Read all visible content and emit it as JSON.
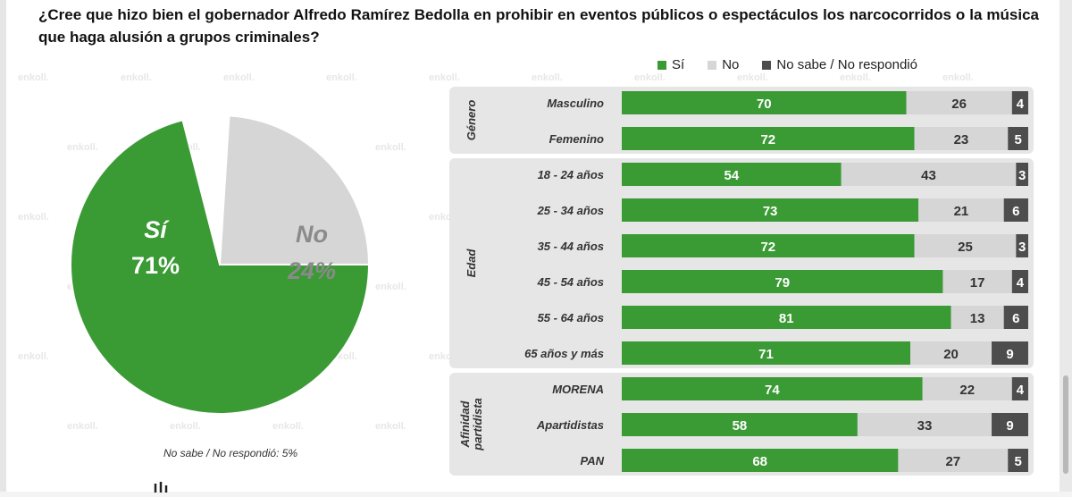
{
  "question": "¿Cree que hizo bien el gobernador Alfredo Ramírez Bedolla en prohibir en eventos públicos o espectáculos los narcocorridos o la música que haga alusión a grupos criminales?",
  "legend": [
    {
      "label": "Sí",
      "color": "#3a9a34"
    },
    {
      "label": "No",
      "color": "#d6d6d6"
    },
    {
      "label": "No sabe / No respondió",
      "color": "#4d4d4d"
    }
  ],
  "pie": {
    "slices": [
      {
        "label": "Sí",
        "value": 71,
        "display": "71%",
        "color": "#3a9a34"
      },
      {
        "label": "No",
        "value": 24,
        "display": "24%",
        "color": "#d6d6d6"
      }
    ],
    "footnote": "No sabe / No respondió: 5%"
  },
  "watermark": "enkoll.",
  "chart_data": [
    {
      "type": "pie",
      "categories": [
        "Sí",
        "No",
        "No sabe / No respondió"
      ],
      "values": [
        71,
        24,
        5
      ]
    },
    {
      "type": "bar",
      "orientation": "horizontal",
      "stacked": true,
      "groups": [
        {
          "name": "Género",
          "rows": [
            "Masculino",
            "Femenino"
          ]
        },
        {
          "name": "Edad",
          "rows": [
            "18 - 24 años",
            "25 - 34 años",
            "35 - 44 años",
            "45 - 54 años",
            "55 - 64 años",
            "65  años y más"
          ]
        },
        {
          "name": "Afinidad partidista",
          "rows": [
            "MORENA",
            "Apartidistas",
            "PAN"
          ]
        }
      ],
      "categories": [
        "Masculino",
        "Femenino",
        "18 - 24 años",
        "25 - 34 años",
        "35 - 44 años",
        "45 - 54 años",
        "55 - 64 años",
        "65  años y más",
        "MORENA",
        "Apartidistas",
        "PAN"
      ],
      "series": [
        {
          "name": "Sí",
          "color": "#3a9a34",
          "values": [
            70,
            72,
            54,
            73,
            72,
            79,
            81,
            71,
            74,
            58,
            68
          ]
        },
        {
          "name": "No",
          "color": "#d6d6d6",
          "values": [
            26,
            23,
            43,
            21,
            25,
            17,
            13,
            20,
            22,
            33,
            27
          ]
        },
        {
          "name": "No sabe / No respondió",
          "color": "#4d4d4d",
          "values": [
            4,
            5,
            3,
            6,
            3,
            4,
            6,
            9,
            4,
            9,
            5
          ]
        }
      ]
    }
  ]
}
